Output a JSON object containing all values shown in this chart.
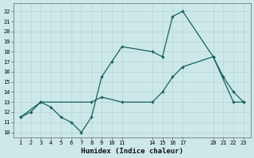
{
  "line1_x": [
    1,
    2,
    3,
    4,
    5,
    6,
    7,
    8,
    9,
    10,
    11,
    14,
    15,
    16,
    17,
    20,
    21,
    22,
    23
  ],
  "line1_y": [
    11.5,
    12.0,
    13.0,
    12.5,
    11.5,
    11.0,
    10.0,
    11.5,
    15.5,
    17.0,
    18.5,
    18.0,
    17.5,
    21.5,
    22.0,
    17.5,
    15.5,
    14.0,
    13.0
  ],
  "line2_x": [
    1,
    3,
    8,
    9,
    11,
    14,
    15,
    16,
    17,
    20,
    22,
    23
  ],
  "line2_y": [
    11.5,
    13.0,
    13.0,
    13.5,
    13.0,
    13.0,
    14.0,
    15.5,
    16.5,
    17.5,
    13.0,
    13.0
  ],
  "bg_color": "#cce8e8",
  "line_color": "#1a6060",
  "grid_color": "#b8d8d8",
  "xlabel": "Humidex (Indice chaleur)",
  "xticks": [
    1,
    2,
    3,
    4,
    5,
    6,
    7,
    8,
    9,
    10,
    11,
    14,
    15,
    16,
    17,
    20,
    21,
    22,
    23
  ],
  "yticks": [
    10,
    11,
    12,
    13,
    14,
    15,
    16,
    17,
    18,
    19,
    20,
    21,
    22
  ],
  "xlim": [
    0.3,
    23.7
  ],
  "ylim": [
    9.5,
    22.8
  ]
}
